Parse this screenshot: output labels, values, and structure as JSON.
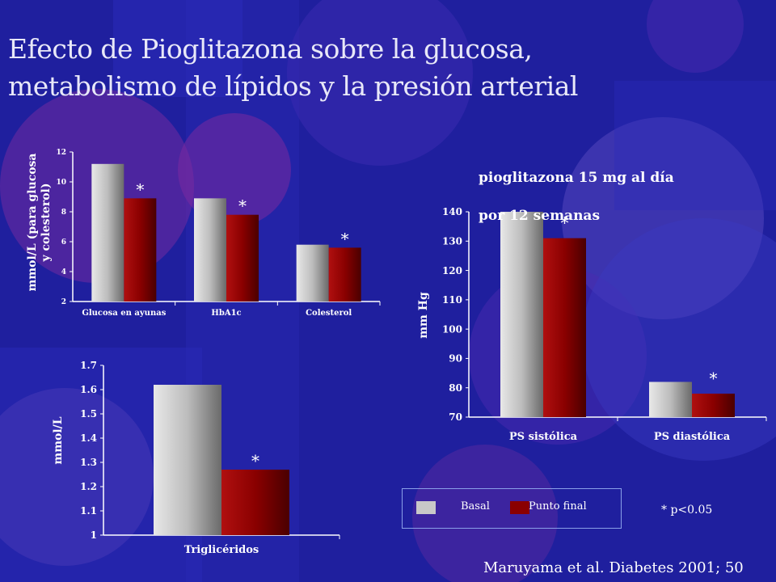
{
  "title_line1": "Efecto de Pioglitazona sobre la glucosa,",
  "title_line2": "metabolismo de lípidos y la presión arterial",
  "dose_note_line1": "pioglitazona 15 mg al día",
  "dose_note_line2": "por 12 semanas",
  "legend": {
    "basal": "Basal",
    "final": "Punto final"
  },
  "significance_note": "* p<0.05",
  "source": "Maruyama et al. Diabetes 2001; 50",
  "colors": {
    "basal": "#b8b8b8",
    "final": "#8a0000",
    "background": "#1f1f9e"
  },
  "chart_data": [
    {
      "type": "bar",
      "ylabel_line1": "mmol/L (para glucosa",
      "ylabel_line2": "y colesterol)",
      "categories": [
        "Glucosa en ayunas",
        "HbA1c",
        "Colesterol"
      ],
      "series": [
        {
          "name": "Basal",
          "values": [
            11.2,
            8.9,
            5.8
          ]
        },
        {
          "name": "Punto final",
          "values": [
            8.9,
            7.8,
            5.6
          ]
        }
      ],
      "significance": [
        "*",
        "*",
        "*"
      ],
      "ylim": [
        2,
        12
      ],
      "yticks": [
        "2",
        "4",
        "6",
        "8",
        "10",
        "12"
      ]
    },
    {
      "type": "bar",
      "ylabel": "mmol/L",
      "categories": [
        "Triglicéridos"
      ],
      "series": [
        {
          "name": "Basal",
          "values": [
            1.62
          ]
        },
        {
          "name": "Punto final",
          "values": [
            1.27
          ]
        }
      ],
      "significance": [
        "*"
      ],
      "ylim": [
        1,
        1.7
      ],
      "yticks": [
        "1",
        "1.1",
        "1.2",
        "1.3",
        "1.4",
        "1.5",
        "1.6",
        "1.7"
      ]
    },
    {
      "type": "bar",
      "ylabel": "mm Hg",
      "categories": [
        "PS sistólica",
        "PS diastólica"
      ],
      "series": [
        {
          "name": "Basal",
          "values": [
            140,
            82
          ]
        },
        {
          "name": "Punto final",
          "values": [
            131,
            78
          ]
        }
      ],
      "significance": [
        "*",
        "*"
      ],
      "ylim": [
        70,
        140
      ],
      "yticks": [
        "70",
        "80",
        "90",
        "100",
        "110",
        "120",
        "130",
        "140"
      ]
    }
  ]
}
